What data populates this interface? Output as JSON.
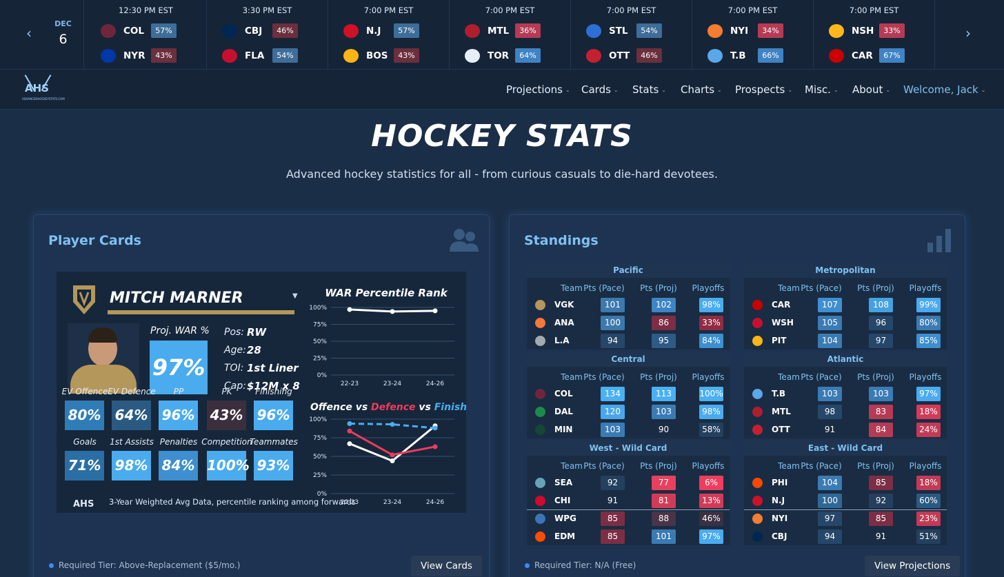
{
  "ticker": {
    "date_month": "DEC",
    "date_day": "6",
    "games": [
      {
        "time": "12:30 PM EST",
        "away": {
          "abbr": "COL",
          "pct": "57%",
          "color": "#3e6d99",
          "logo": "#6f263d"
        },
        "home": {
          "abbr": "NYR",
          "pct": "43%",
          "color": "#6b2f3d",
          "logo": "#0038a8"
        }
      },
      {
        "time": "3:30 PM EST",
        "away": {
          "abbr": "CBJ",
          "pct": "46%",
          "color": "#6b2f3d",
          "logo": "#002654"
        },
        "home": {
          "abbr": "FLA",
          "pct": "54%",
          "color": "#3e6d99",
          "logo": "#c8102e"
        }
      },
      {
        "time": "7:00 PM EST",
        "away": {
          "abbr": "N.J",
          "pct": "57%",
          "color": "#3e6d99",
          "logo": "#ce1126"
        },
        "home": {
          "abbr": "BOS",
          "pct": "43%",
          "color": "#6b2f3d",
          "logo": "#fcb514"
        }
      },
      {
        "time": "7:00 PM EST",
        "away": {
          "abbr": "MTL",
          "pct": "36%",
          "color": "#b53b55",
          "logo": "#af1e2d"
        },
        "home": {
          "abbr": "TOR",
          "pct": "64%",
          "color": "#3f83c4",
          "logo": "#e6eef7"
        }
      },
      {
        "time": "7:00 PM EST",
        "away": {
          "abbr": "STL",
          "pct": "54%",
          "color": "#3e6d99",
          "logo": "#2d6fd6"
        },
        "home": {
          "abbr": "OTT",
          "pct": "46%",
          "color": "#6b2f3d",
          "logo": "#c52032"
        }
      },
      {
        "time": "7:00 PM EST",
        "away": {
          "abbr": "NYI",
          "pct": "34%",
          "color": "#b53b55",
          "logo": "#f47d30"
        },
        "home": {
          "abbr": "T.B",
          "pct": "66%",
          "color": "#3f83c4",
          "logo": "#5aa8e8"
        }
      },
      {
        "time": "7:00 PM EST",
        "away": {
          "abbr": "NSH",
          "pct": "33%",
          "color": "#b53b55",
          "logo": "#ffb81c"
        },
        "home": {
          "abbr": "CAR",
          "pct": "67%",
          "color": "#3f83c4",
          "logo": "#cc0000"
        }
      }
    ]
  },
  "nav": {
    "logo_text": "AHS",
    "logo_sub": "ADVANCEDHOCKEYSTATS.COM",
    "items": [
      "Projections",
      "Cards",
      "Stats",
      "Charts",
      "Prospects",
      "Misc.",
      "About"
    ],
    "welcome": "Welcome, Jack"
  },
  "hero": {
    "title": "HOCKEY STATS",
    "subtitle": "Advanced hockey statistics for all - from curious casuals to die-hard devotees."
  },
  "player_panel": {
    "title": "Player Cards",
    "tier": "Required Tier: Above-Replacement ($5/mo.)",
    "button": "View Cards",
    "card": {
      "name": "MITCH MARNER",
      "proj_war_label": "Proj. WAR %",
      "proj_war": "97%",
      "bio": [
        {
          "k": "Pos:",
          "v": "RW"
        },
        {
          "k": "Age:",
          "v": "28"
        },
        {
          "k": "TOI:",
          "v": "1st Liner"
        },
        {
          "k": "Cap:",
          "v": "$12M x 8"
        }
      ],
      "tiles_row1": [
        {
          "label": "EV Offence",
          "value": "80%",
          "color": "#2f7db8"
        },
        {
          "label": "EV Defence",
          "value": "64%",
          "color": "#2a5a82"
        },
        {
          "label": "PP",
          "value": "96%",
          "color": "#4aabef"
        },
        {
          "label": "PK",
          "value": "43%",
          "color": "#3b2f3e"
        },
        {
          "label": "Finishing",
          "value": "96%",
          "color": "#4aabef"
        }
      ],
      "tiles_row2": [
        {
          "label": "Goals",
          "value": "71%",
          "color": "#2a6ea6"
        },
        {
          "label": "1st Assists",
          "value": "98%",
          "color": "#4aabef"
        },
        {
          "label": "Penalties",
          "value": "84%",
          "color": "#3d8fcf"
        },
        {
          "label": "Competition",
          "value": "100%",
          "color": "#4aabef"
        },
        {
          "label": "Teammates",
          "value": "93%",
          "color": "#4aabef"
        }
      ],
      "footnote": "3-Year Weighted Avg Data, percentile ranking among forwards",
      "chart1": {
        "title": "WAR Percentile Rank",
        "yticks": [
          "100%",
          "75%",
          "50%",
          "25%",
          "0%"
        ],
        "x": [
          "22-23",
          "23-24",
          "24-26"
        ],
        "values": [
          97,
          94,
          95
        ]
      },
      "chart2": {
        "title_a": "Offence",
        "title_vs1": "vs",
        "title_b": "Defence",
        "title_vs2": "vs",
        "title_c": "Finishing",
        "yticks": [
          "100%",
          "75%",
          "50%",
          "25%",
          "0%"
        ],
        "x": [
          "22-23",
          "23-24",
          "24-26"
        ],
        "series": [
          {
            "name": "Offence",
            "values": [
              67,
              44,
              91
            ],
            "color": "#ffffff"
          },
          {
            "name": "Defence",
            "values": [
              84,
              52,
              63
            ],
            "color": "#ef3b5d"
          },
          {
            "name": "Finishing",
            "values": [
              94,
              93,
              88
            ],
            "color": "#49aef2"
          }
        ]
      }
    }
  },
  "standings_panel": {
    "title": "Standings",
    "tier": "Required Tier: N/A (Free)",
    "button": "View Projections",
    "headers": {
      "team": "Team",
      "pace": "Pts (Pace)",
      "proj": "Pts (Proj)",
      "playoffs": "Playoffs"
    },
    "divisions": [
      {
        "name": "Pacific",
        "rows": [
          {
            "abbr": "VGK",
            "logo": "#b4975a",
            "pace": "101",
            "pc": "#3c79ad",
            "proj": "102",
            "jc": "#3f84c4",
            "po": "98%",
            "oc": "#4aabef"
          },
          {
            "abbr": "ANA",
            "logo": "#f47a38",
            "pace": "100",
            "pc": "#3c79ad",
            "proj": "86",
            "jc": "#7c2e44",
            "po": "33%",
            "oc": "#8c2d45"
          },
          {
            "abbr": "L.A",
            "logo": "#a2aaad",
            "pace": "94",
            "pc": "#26476a",
            "proj": "95",
            "jc": "#2d5a86",
            "po": "84%",
            "oc": "#3d8fcf"
          }
        ]
      },
      {
        "name": "Metropolitan",
        "rows": [
          {
            "abbr": "CAR",
            "logo": "#cc0000",
            "pace": "107",
            "pc": "#3f8fd2",
            "proj": "108",
            "jc": "#46a0e2",
            "po": "99%",
            "oc": "#4aabef"
          },
          {
            "abbr": "WSH",
            "logo": "#c8102e",
            "pace": "105",
            "pc": "#3a7bb4",
            "proj": "96",
            "jc": "#26476a",
            "po": "80%",
            "oc": "#3a7bb4"
          },
          {
            "abbr": "PIT",
            "logo": "#fcb514",
            "pace": "104",
            "pc": "#3a7bb4",
            "proj": "97",
            "jc": "#26476a",
            "po": "85%",
            "oc": "#3d8fcf"
          }
        ]
      },
      {
        "name": "Central",
        "rows": [
          {
            "abbr": "COL",
            "logo": "#6f263d",
            "pace": "134",
            "pc": "#4ab0f2",
            "proj": "113",
            "jc": "#4ab0f2",
            "po": "100%",
            "oc": "#4ab0f2"
          },
          {
            "abbr": "DAL",
            "logo": "#1b8a4a",
            "pace": "120",
            "pc": "#4aa6ea",
            "proj": "103",
            "jc": "#3a7bb4",
            "po": "98%",
            "oc": "#4aabef"
          },
          {
            "abbr": "MIN",
            "logo": "#154734",
            "pace": "103",
            "pc": "#3a7bb4",
            "proj": "90",
            "jc": "#1a2c43",
            "po": "58%",
            "oc": "#24405e"
          }
        ]
      },
      {
        "name": "Atlantic",
        "rows": [
          {
            "abbr": "T.B",
            "logo": "#5aa8e8",
            "pace": "103",
            "pc": "#3a7bb4",
            "proj": "103",
            "jc": "#3a7bb4",
            "po": "97%",
            "oc": "#4aabef"
          },
          {
            "abbr": "MTL",
            "logo": "#af1e2d",
            "pace": "98",
            "pc": "#26476a",
            "proj": "83",
            "jc": "#b53b55",
            "po": "18%",
            "oc": "#d23b58"
          },
          {
            "abbr": "OTT",
            "logo": "#c52032",
            "pace": "91",
            "pc": "#1a2c43",
            "proj": "84",
            "jc": "#b53b55",
            "po": "24%",
            "oc": "#c23a55"
          }
        ]
      },
      {
        "name": "West - Wild Card",
        "rows": [
          {
            "abbr": "SEA",
            "logo": "#68a2b9",
            "pace": "92",
            "pc": "#23405e",
            "proj": "77",
            "jc": "#e8415f",
            "po": "6%",
            "oc": "#ef3d5e"
          },
          {
            "abbr": "CHI",
            "logo": "#cf0a2c",
            "pace": "91",
            "pc": "#1a2c43",
            "proj": "81",
            "jc": "#d23b58",
            "po": "13%",
            "oc": "#d23b58"
          },
          {
            "abbr": "WPG",
            "logo": "#3e73b7",
            "pace": "85",
            "pc": "#7c2e44",
            "proj": "88",
            "jc": "#4a3447",
            "po": "46%",
            "oc": "#3a3042"
          },
          {
            "abbr": "EDM",
            "logo": "#fc4c02",
            "pace": "85",
            "pc": "#7c2e44",
            "proj": "101",
            "jc": "#3a7bb4",
            "po": "97%",
            "oc": "#4aabef"
          }
        ]
      },
      {
        "name": "East - Wild Card",
        "rows": [
          {
            "abbr": "PHI",
            "logo": "#f74902",
            "pace": "104",
            "pc": "#3a7bb4",
            "proj": "85",
            "jc": "#7c2e44",
            "po": "18%",
            "oc": "#c23a55"
          },
          {
            "abbr": "N.J",
            "logo": "#ce1126",
            "pace": "100",
            "pc": "#2f6898",
            "proj": "92",
            "jc": "#24405e",
            "po": "60%",
            "oc": "#2a5a82"
          },
          {
            "abbr": "NYI",
            "logo": "#f47d30",
            "pace": "97",
            "pc": "#26476a",
            "proj": "85",
            "jc": "#7c2e44",
            "po": "23%",
            "oc": "#c23a55"
          },
          {
            "abbr": "CBJ",
            "logo": "#002654",
            "pace": "94",
            "pc": "#26476a",
            "proj": "91",
            "jc": "#1a2c43",
            "po": "51%",
            "oc": "#24405e"
          }
        ]
      }
    ]
  }
}
